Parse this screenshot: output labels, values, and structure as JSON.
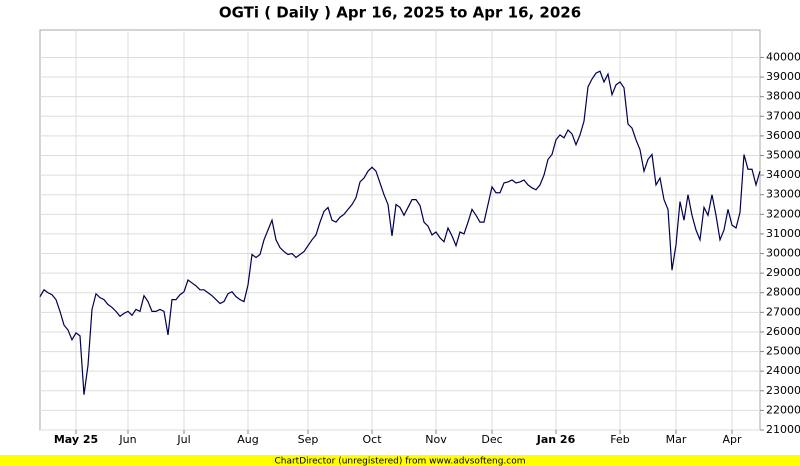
{
  "chart_data": {
    "type": "line",
    "title": "OGTi ( Daily ) Apr 16, 2025 to Apr 16, 2026",
    "categories": [
      null,
      null,
      null,
      null,
      null,
      null,
      null,
      null,
      null,
      "May 25",
      null,
      null,
      null,
      null,
      null,
      null,
      null,
      null,
      null,
      null,
      null,
      null,
      "Jun",
      null,
      null,
      null,
      null,
      null,
      null,
      null,
      null,
      null,
      null,
      null,
      null,
      null,
      "Jul",
      null,
      null,
      null,
      null,
      null,
      null,
      null,
      null,
      null,
      null,
      null,
      null,
      null,
      null,
      null,
      "Aug",
      null,
      null,
      null,
      null,
      null,
      null,
      null,
      null,
      null,
      null,
      null,
      null,
      null,
      null,
      "Sep",
      null,
      null,
      null,
      null,
      null,
      null,
      null,
      null,
      null,
      null,
      null,
      null,
      null,
      null,
      null,
      "Oct",
      null,
      null,
      null,
      null,
      null,
      null,
      null,
      null,
      null,
      null,
      null,
      null,
      null,
      null,
      null,
      "Nov",
      null,
      null,
      null,
      null,
      null,
      null,
      null,
      null,
      null,
      null,
      null,
      null,
      null,
      "Dec",
      null,
      null,
      null,
      null,
      null,
      null,
      null,
      null,
      null,
      null,
      null,
      null,
      null,
      null,
      null,
      "Jan 26",
      null,
      null,
      null,
      null,
      null,
      null,
      null,
      null,
      null,
      null,
      null,
      null,
      null,
      null,
      null,
      "Feb",
      null,
      null,
      null,
      null,
      null,
      null,
      null,
      null,
      null,
      null,
      null,
      null,
      null,
      "Mar",
      null,
      null,
      null,
      null,
      null,
      null,
      null,
      null,
      null,
      null,
      null,
      null,
      null,
      "Apr",
      null,
      null,
      null,
      null,
      null,
      null,
      null
    ],
    "values": [
      27800,
      28150,
      28000,
      27900,
      27650,
      27050,
      26350,
      26100,
      25600,
      25950,
      25800,
      22800,
      24300,
      27150,
      27950,
      27750,
      27650,
      27400,
      27250,
      27050,
      26800,
      26950,
      27050,
      26850,
      27150,
      27050,
      27850,
      27550,
      27050,
      27050,
      27150,
      27050,
      25850,
      27650,
      27650,
      27900,
      28050,
      28650,
      28500,
      28350,
      28150,
      28150,
      28000,
      27850,
      27650,
      27450,
      27550,
      27950,
      28050,
      27800,
      27650,
      27550,
      28400,
      29950,
      29800,
      29950,
      30700,
      31200,
      31700,
      30700,
      30300,
      30100,
      29950,
      30000,
      29800,
      29950,
      30100,
      30400,
      30700,
      30950,
      31600,
      32150,
      32350,
      31700,
      31600,
      31850,
      32000,
      32250,
      32500,
      32850,
      33650,
      33850,
      34200,
      34400,
      34200,
      33600,
      33000,
      32500,
      30900,
      32500,
      32350,
      31950,
      32350,
      32750,
      32750,
      32450,
      31600,
      31400,
      30950,
      31100,
      30800,
      30600,
      31300,
      30900,
      30400,
      31100,
      31000,
      31600,
      32250,
      31950,
      31600,
      31600,
      32500,
      33400,
      33100,
      33100,
      33600,
      33650,
      33750,
      33600,
      33650,
      33750,
      33500,
      33350,
      33250,
      33500,
      34000,
      34800,
      35050,
      35800,
      36050,
      35900,
      36300,
      36100,
      35550,
      36050,
      36750,
      38500,
      38900,
      39200,
      39300,
      38750,
      39150,
      38100,
      38600,
      38750,
      38450,
      36600,
      36400,
      35800,
      35300,
      34200,
      34800,
      35050,
      33500,
      33850,
      32750,
      32250,
      29150,
      30450,
      32650,
      31700,
      33000,
      31950,
      31200,
      30700,
      32350,
      31950,
      33000,
      31950,
      30700,
      31200,
      32250,
      31450,
      31300,
      32100,
      35050,
      34300,
      34300,
      33500,
      34200
    ],
    "color": "#000050",
    "ylim": [
      21000,
      41400
    ],
    "yticks": [
      21000,
      22000,
      23000,
      24000,
      25000,
      26000,
      27000,
      28000,
      29000,
      30000,
      31000,
      32000,
      33000,
      34000,
      35000,
      36000,
      37000,
      38000,
      39000,
      40000
    ],
    "grid": true
  },
  "footer": "ChartDirector (unregistered) from www.advsofteng.com"
}
